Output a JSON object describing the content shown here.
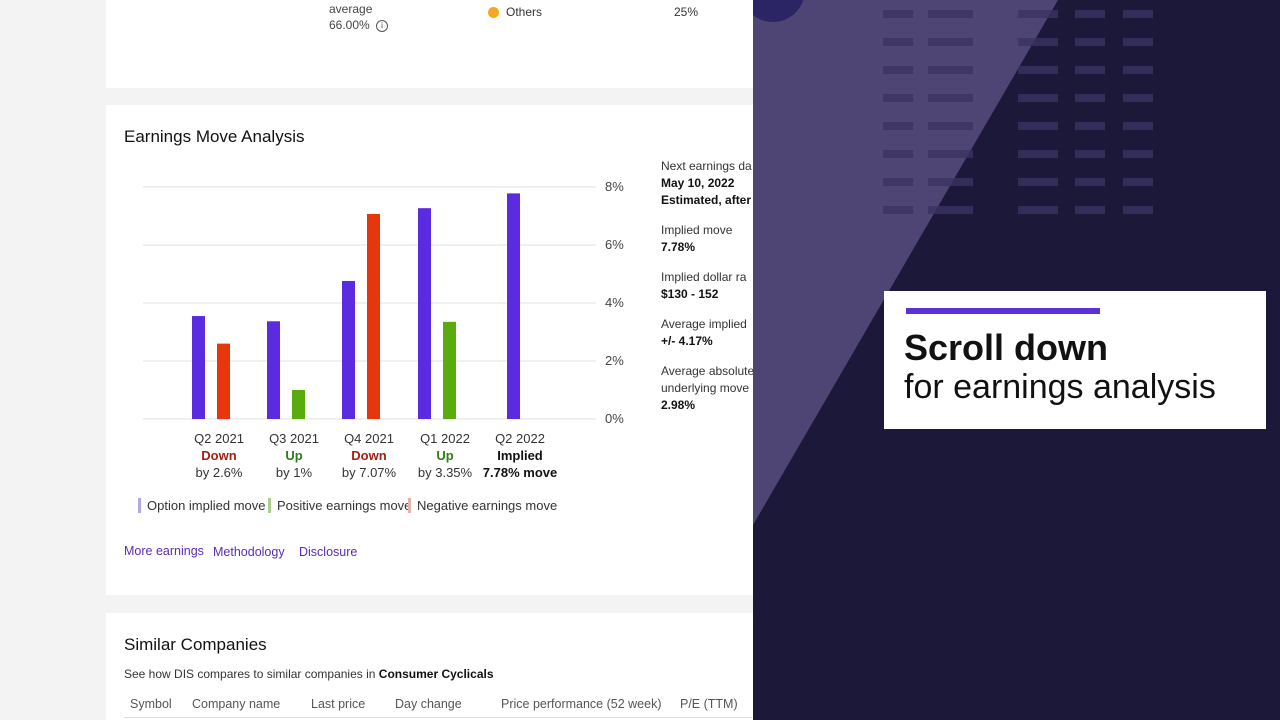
{
  "top": {
    "average_label": "average",
    "average_value": "66.00%",
    "others_label": "Others",
    "others_pct": "25%",
    "others_color": "#f5a623"
  },
  "earnings": {
    "title": "Earnings Move Analysis",
    "chart_data": {
      "type": "bar",
      "categories": [
        "Q2 2021",
        "Q3 2021",
        "Q4 2021",
        "Q1 2022",
        "Q2 2022"
      ],
      "series": [
        {
          "name": "Option implied move",
          "color": "#5b2be0",
          "values": [
            3.55,
            3.37,
            4.76,
            7.27,
            7.78
          ]
        },
        {
          "name": "Earnings move",
          "values": [
            2.6,
            1.0,
            7.07,
            3.35,
            null
          ],
          "point_colors": [
            "#e8360c",
            "#5aab0e",
            "#e8360c",
            "#5aab0e",
            null
          ]
        }
      ],
      "ylim": [
        0,
        8
      ],
      "yticks": [
        "0%",
        "2%",
        "4%",
        "6%",
        "8%"
      ],
      "grid": true,
      "legend_placement": "bottom"
    },
    "quarters": [
      {
        "label": "Q2 2021",
        "status": "Down",
        "status_color": "#a31f14",
        "by": "by 2.6%"
      },
      {
        "label": "Q3 2021",
        "status": "Up",
        "status_color": "#2e7d16",
        "by": "by 1%"
      },
      {
        "label": "Q4 2021",
        "status": "Down",
        "status_color": "#a31f14",
        "by": "by 7.07%"
      },
      {
        "label": "Q1 2022",
        "status": "Up",
        "status_color": "#2e7d16",
        "by": "by 3.35%"
      },
      {
        "label": "Q2 2022",
        "status": "Implied",
        "status_color": "#111111",
        "by": "7.78% move"
      }
    ],
    "legend": [
      {
        "label": "Option implied move",
        "color": "#b3a6ea"
      },
      {
        "label": "Positive earnings move",
        "color": "#a9cf8a"
      },
      {
        "label": "Negative earnings move",
        "color": "#e8b3a6"
      }
    ],
    "links": [
      "More earnings",
      "Methodology",
      "Disclosure"
    ],
    "side": {
      "next_label": "Next earnings da",
      "next_date": "May 10, 2022",
      "next_time": "Estimated, after",
      "implied_label": "Implied move",
      "implied_value": "7.78%",
      "dollar_label": "Implied dollar ra",
      "dollar_value": "$130 - 152",
      "avg_implied_label": "Average implied",
      "avg_implied_value": "+/- 4.17%",
      "avg_abs_label_1": "Average absolute",
      "avg_abs_label_2": "underlying move",
      "avg_abs_value": "2.98%"
    }
  },
  "similar": {
    "title": "Similar Companies",
    "desc_prefix": "See how DIS compares to similar companies in ",
    "desc_sector": "Consumer Cyclicals",
    "columns": [
      "Symbol",
      "Company name",
      "Last price",
      "Day change",
      "Price performance (52 week)",
      "P/E (TTM)"
    ]
  },
  "promo": {
    "title": "Scroll down",
    "subtitle": "for earnings analysis",
    "accent": "#5b32d6"
  },
  "overlay": {
    "bg": "#1c1839",
    "wedge": "#7a6ca8"
  }
}
